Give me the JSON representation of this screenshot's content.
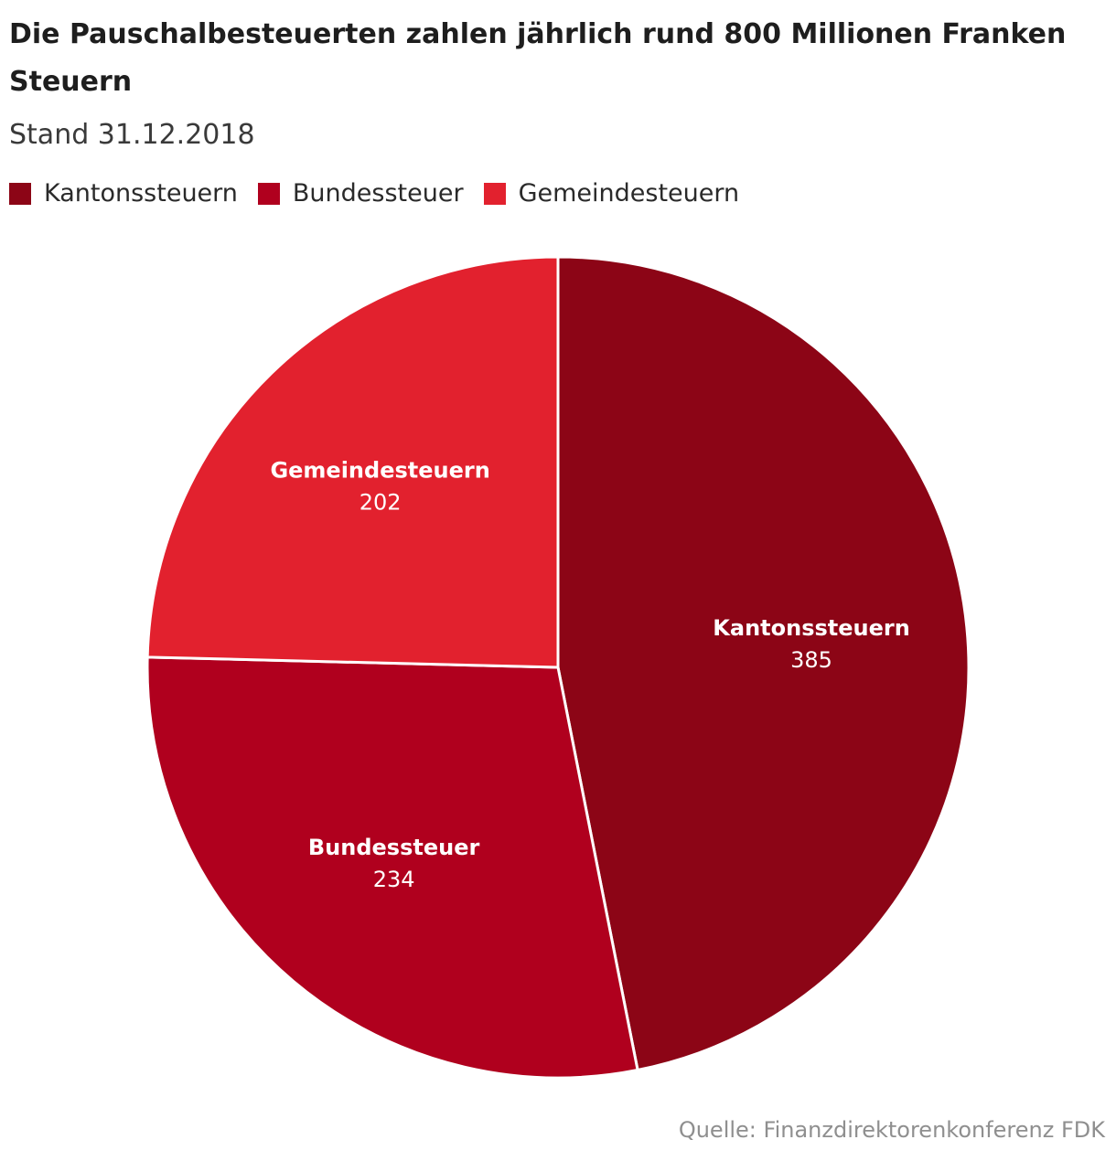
{
  "chart_data": {
    "type": "pie",
    "title": "Die Pauschalbesteuerten zahlen jährlich rund 800 Millionen Franken Steuern",
    "subtitle": "Stand 31.12.2018",
    "legend_position": "top-left",
    "slices": [
      {
        "label": "Kantonssteuern",
        "value": 385,
        "color": "#8c0516"
      },
      {
        "label": "Bundessteuer",
        "value": 234,
        "color": "#b0001e"
      },
      {
        "label": "Gemeindesteuern",
        "value": 202,
        "color": "#e2212e"
      }
    ],
    "source": "Quelle: Finanzdirektorenkonferenz FDK"
  }
}
